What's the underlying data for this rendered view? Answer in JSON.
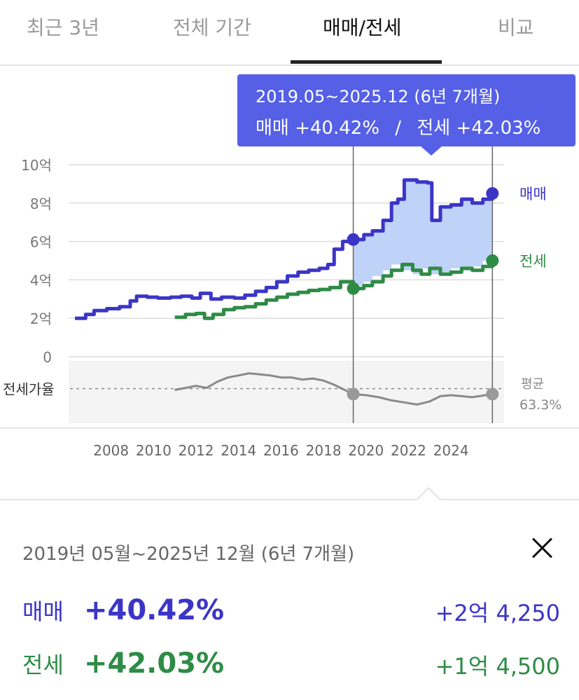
{
  "tabs": [
    {
      "label": "최근 3년",
      "active": false
    },
    {
      "label": "전체 기간",
      "active": false
    },
    {
      "label": "매매/전세",
      "active": true
    },
    {
      "label": "비교",
      "active": false
    }
  ],
  "tooltip": {
    "range": "2019.05~2025.12 (6년 7개월)",
    "sale_text": "매매 +40.42%",
    "separator": "/",
    "jeonse_text": "전세 +42.03%"
  },
  "chart_data": {
    "type": "line",
    "x_ticks": [
      "2008",
      "2010",
      "2012",
      "2014",
      "2016",
      "2018",
      "2020",
      "2022",
      "2024"
    ],
    "y_ticks": [
      "10억",
      "8억",
      "6억",
      "4억",
      "2억",
      "0"
    ],
    "y_tick_values": [
      10,
      8,
      6,
      4,
      2,
      0
    ],
    "ylim": [
      0,
      10
    ],
    "xlim": [
      2006,
      2026.5
    ],
    "y_unit": "억",
    "selection": {
      "start": 2019.4,
      "end": 2025.95
    },
    "series": [
      {
        "name": "매매",
        "color": "#3b35c7",
        "points": [
          [
            2006.3,
            2.0
          ],
          [
            2006.8,
            2.2
          ],
          [
            2007.2,
            2.4
          ],
          [
            2007.8,
            2.5
          ],
          [
            2008.4,
            2.6
          ],
          [
            2008.9,
            2.9
          ],
          [
            2009.2,
            3.15
          ],
          [
            2009.7,
            3.1
          ],
          [
            2010.2,
            3.05
          ],
          [
            2010.8,
            3.1
          ],
          [
            2011.3,
            3.15
          ],
          [
            2011.8,
            3.05
          ],
          [
            2012.2,
            3.3
          ],
          [
            2012.7,
            3.0
          ],
          [
            2013.2,
            3.1
          ],
          [
            2013.8,
            3.05
          ],
          [
            2014.3,
            3.2
          ],
          [
            2014.8,
            3.4
          ],
          [
            2015.3,
            3.6
          ],
          [
            2015.8,
            3.9
          ],
          [
            2016.3,
            4.2
          ],
          [
            2016.8,
            4.4
          ],
          [
            2017.3,
            4.5
          ],
          [
            2017.8,
            4.6
          ],
          [
            2018.2,
            4.8
          ],
          [
            2018.5,
            5.6
          ],
          [
            2018.9,
            6.0
          ],
          [
            2019.4,
            6.1
          ],
          [
            2019.9,
            6.35
          ],
          [
            2020.3,
            6.55
          ],
          [
            2020.8,
            7.1
          ],
          [
            2021.2,
            8.0
          ],
          [
            2021.5,
            8.2
          ],
          [
            2021.8,
            9.2
          ],
          [
            2022.4,
            9.1
          ],
          [
            2022.9,
            9.05
          ],
          [
            2023.1,
            7.1
          ],
          [
            2023.5,
            7.8
          ],
          [
            2024.0,
            7.9
          ],
          [
            2024.5,
            8.2
          ],
          [
            2025.0,
            8.0
          ],
          [
            2025.5,
            8.2
          ],
          [
            2025.95,
            8.5
          ]
        ]
      },
      {
        "name": "전세",
        "color": "#2e8b46",
        "points": [
          [
            2011.0,
            2.05
          ],
          [
            2011.5,
            2.2
          ],
          [
            2012.0,
            2.25
          ],
          [
            2012.4,
            2.0
          ],
          [
            2012.8,
            2.2
          ],
          [
            2013.3,
            2.45
          ],
          [
            2013.8,
            2.55
          ],
          [
            2014.3,
            2.6
          ],
          [
            2014.8,
            2.75
          ],
          [
            2015.3,
            2.95
          ],
          [
            2015.8,
            3.1
          ],
          [
            2016.3,
            3.25
          ],
          [
            2016.8,
            3.35
          ],
          [
            2017.3,
            3.45
          ],
          [
            2017.8,
            3.5
          ],
          [
            2018.3,
            3.6
          ],
          [
            2018.8,
            3.9
          ],
          [
            2019.4,
            3.55
          ],
          [
            2019.9,
            3.7
          ],
          [
            2020.3,
            3.9
          ],
          [
            2020.8,
            4.2
          ],
          [
            2021.2,
            4.5
          ],
          [
            2021.7,
            4.8
          ],
          [
            2022.2,
            4.5
          ],
          [
            2022.6,
            4.3
          ],
          [
            2023.0,
            4.6
          ],
          [
            2023.5,
            4.3
          ],
          [
            2024.0,
            4.4
          ],
          [
            2024.5,
            4.6
          ],
          [
            2025.0,
            4.5
          ],
          [
            2025.5,
            4.7
          ],
          [
            2025.95,
            5.0
          ]
        ]
      },
      {
        "name": "전세가율",
        "color": "#8a8a8a",
        "points": [
          [
            2011.0,
            0.62
          ],
          [
            2011.5,
            0.64
          ],
          [
            2012.0,
            0.66
          ],
          [
            2012.5,
            0.64
          ],
          [
            2013.0,
            0.7
          ],
          [
            2013.5,
            0.74
          ],
          [
            2014.0,
            0.76
          ],
          [
            2014.5,
            0.78
          ],
          [
            2015.0,
            0.77
          ],
          [
            2015.5,
            0.76
          ],
          [
            2016.0,
            0.74
          ],
          [
            2016.5,
            0.74
          ],
          [
            2017.0,
            0.72
          ],
          [
            2017.5,
            0.73
          ],
          [
            2018.0,
            0.71
          ],
          [
            2018.5,
            0.67
          ],
          [
            2019.4,
            0.58
          ],
          [
            2020.0,
            0.57
          ],
          [
            2020.6,
            0.55
          ],
          [
            2021.2,
            0.52
          ],
          [
            2021.8,
            0.5
          ],
          [
            2022.4,
            0.48
          ],
          [
            2023.0,
            0.51
          ],
          [
            2023.5,
            0.56
          ],
          [
            2024.0,
            0.57
          ],
          [
            2024.5,
            0.56
          ],
          [
            2025.0,
            0.55
          ],
          [
            2025.95,
            0.58
          ]
        ]
      }
    ],
    "series_labels": {
      "sale": "매매",
      "jeonse": "전세"
    },
    "ratio_label": "전세가율",
    "average_label": "평균",
    "average_value": "63.3%",
    "average_ratio": 0.633
  },
  "summary": {
    "range": "2019년 05월~2025년 12월 (6년 7개월)",
    "sale": {
      "label": "매매",
      "pct": "+40.42%",
      "amount": "+2억 4,250"
    },
    "jeonse": {
      "label": "전세",
      "pct": "+42.03%",
      "amount": "+1억 4,500"
    }
  }
}
